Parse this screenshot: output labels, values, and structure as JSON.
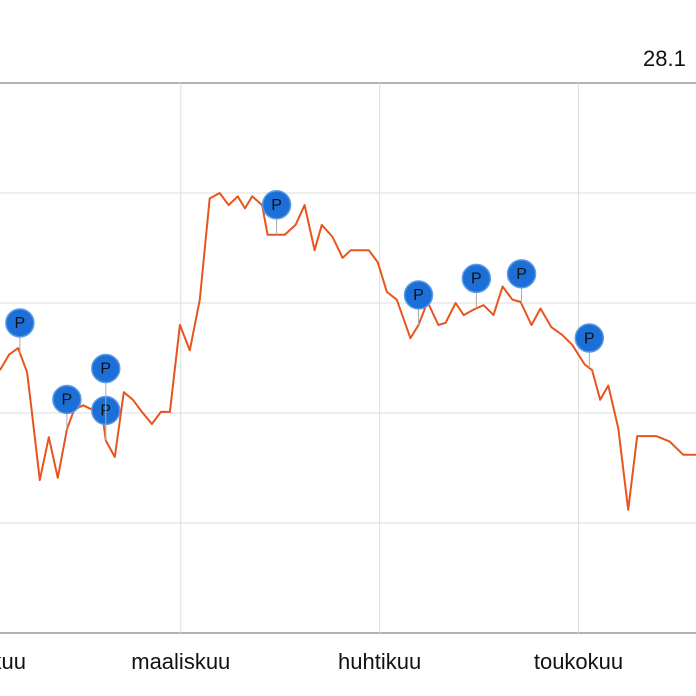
{
  "chart_data": {
    "type": "line",
    "subtitle": "28.1",
    "xlim": [
      0,
      77
    ],
    "ylim": [
      0,
      5
    ],
    "xticks": [
      {
        "value": -2,
        "label": "helmikuu"
      },
      {
        "value": 20,
        "label": "maaliskuu"
      },
      {
        "value": 42,
        "label": "huhtikuu"
      },
      {
        "value": 64,
        "label": "toukokuu"
      }
    ],
    "grid": true,
    "series": [
      {
        "color": "#e8541e",
        "x": [
          0,
          1.0,
          2.0,
          3.0,
          3.5,
          4.4,
          5.4,
          6.4,
          7.4,
          8.2,
          9.2,
          10.2,
          11.1,
          11.7,
          12.7,
          13.7,
          14.7,
          15.7,
          16.8,
          17.8,
          18.8,
          19.9,
          21.0,
          22.1,
          23.2,
          24.3,
          25.3,
          26.3,
          27.1,
          27.9,
          29.0,
          29.6,
          31.5,
          32.7,
          33.7,
          34.8,
          35.6,
          36.8,
          37.9,
          38.8,
          40.8,
          41.8,
          42.8,
          43.9,
          45.4,
          46.3,
          47.3,
          48.5,
          49.3,
          50.4,
          51.3,
          52.4,
          53.5,
          54.6,
          55.6,
          56.7,
          57.6,
          58.8,
          59.8,
          61.0,
          62.2,
          63.3,
          64.7,
          65.5,
          66.4,
          67.3,
          68.4,
          69.5,
          70.5,
          72.6,
          74.1,
          75.6,
          77.0
        ],
        "values": [
          2.39,
          2.53,
          2.59,
          2.37,
          2.03,
          1.39,
          1.78,
          1.41,
          1.85,
          2.03,
          2.07,
          2.03,
          2.12,
          1.75,
          1.6,
          2.19,
          2.12,
          2.01,
          1.9,
          2.01,
          2.01,
          2.8,
          2.57,
          3.03,
          3.95,
          4.0,
          3.89,
          3.97,
          3.86,
          3.97,
          3.89,
          3.62,
          3.62,
          3.71,
          3.89,
          3.48,
          3.71,
          3.6,
          3.41,
          3.48,
          3.48,
          3.37,
          3.1,
          3.03,
          2.68,
          2.8,
          3.01,
          2.8,
          2.82,
          3.0,
          2.89,
          2.94,
          2.98,
          2.89,
          3.15,
          3.03,
          3.01,
          2.8,
          2.95,
          2.78,
          2.71,
          2.62,
          2.44,
          2.39,
          2.12,
          2.25,
          1.86,
          1.12,
          1.79,
          1.79,
          1.74,
          1.62,
          1.62
        ]
      }
    ],
    "flags": [
      {
        "x": 2.2,
        "label": "P"
      },
      {
        "x": 7.4,
        "label": "P"
      },
      {
        "x": 11.7,
        "label": "P"
      },
      {
        "x": 11.7,
        "label": "P"
      },
      {
        "x": 30.6,
        "label": "P"
      },
      {
        "x": 46.3,
        "label": "P"
      },
      {
        "x": 52.7,
        "label": "P"
      },
      {
        "x": 57.7,
        "label": "P"
      },
      {
        "x": 65.2,
        "label": "P"
      }
    ]
  }
}
